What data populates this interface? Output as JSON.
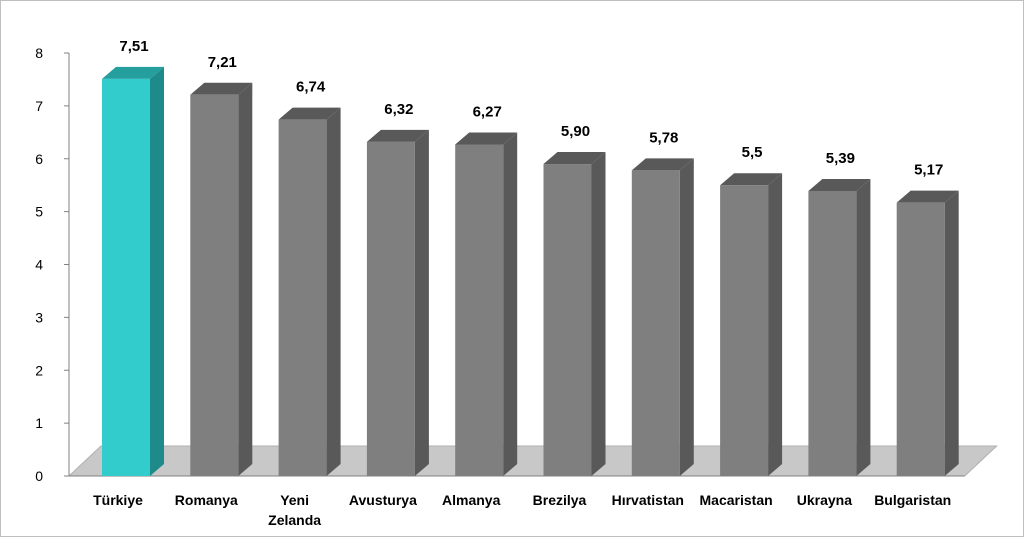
{
  "chart_data": {
    "type": "bar",
    "style": "3d-column",
    "categories": [
      "Türkiye",
      "Romanya",
      "Yeni Zelanda",
      "Avusturya",
      "Almanya",
      "Brezilya",
      "Hırvatistan",
      "Macaristan",
      "Ukrayna",
      "Bulgaristan"
    ],
    "category_lines": [
      [
        "Türkiye"
      ],
      [
        "Romanya"
      ],
      [
        "Yeni",
        "Zelanda"
      ],
      [
        "Avusturya"
      ],
      [
        "Almanya"
      ],
      [
        "Brezilya"
      ],
      [
        "Hırvatistan"
      ],
      [
        "Macaristan"
      ],
      [
        "Ukrayna"
      ],
      [
        "Bulgaristan"
      ]
    ],
    "values": [
      7.51,
      7.21,
      6.74,
      6.32,
      6.27,
      5.9,
      5.78,
      5.5,
      5.39,
      5.17
    ],
    "value_labels": [
      "7,51",
      "7,21",
      "6,74",
      "6,32",
      "6,27",
      "5,90",
      "5,78",
      "5,5",
      "5,39",
      "5,17"
    ],
    "highlight_index": 0,
    "title": "",
    "xlabel": "",
    "ylabel": "",
    "ylim": [
      0,
      8
    ],
    "yticks": [
      0,
      1,
      2,
      3,
      4,
      5,
      6,
      7,
      8
    ],
    "grid": false,
    "legend": "none",
    "colors": {
      "highlight_front": "#33CCCC",
      "highlight_side": "#1F8A8A",
      "highlight_top": "#259E9E",
      "bar_front": "#7F7F7F",
      "bar_side": "#595959",
      "bar_top": "#595959",
      "floor": "#C8C8C8",
      "axis": "#808080"
    }
  }
}
